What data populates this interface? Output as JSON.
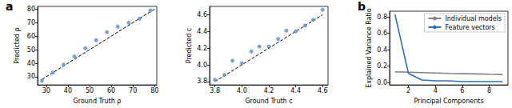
{
  "chart_data": [
    {
      "type": "scatter",
      "title": "a",
      "x_label": "Ground Truth ρ",
      "y_label": "Predicted ρ",
      "x": [
        28,
        33,
        38,
        43,
        48,
        53,
        58,
        63,
        68,
        73,
        78
      ],
      "values": [
        27,
        33,
        39,
        45,
        51,
        57,
        63,
        67,
        70,
        73,
        79
      ],
      "color": "#5b8fc9",
      "marker": "circle",
      "fit_line": {
        "x": [
          28,
          80
        ],
        "values": [
          28,
          80
        ],
        "color": "#000000",
        "line_style": "dashed"
      },
      "xlim": [
        26,
        81
      ],
      "ylim": [
        24,
        82
      ],
      "xticks": [
        30,
        40,
        50,
        60,
        70,
        80
      ],
      "yticks": [
        30,
        40,
        50,
        60,
        70,
        80
      ],
      "grid": false
    },
    {
      "type": "scatter",
      "x_label": "Ground Truth c",
      "y_label": "Predicted c",
      "x": [
        3.8,
        3.87,
        3.93,
        4.0,
        4.07,
        4.13,
        4.2,
        4.27,
        4.33,
        4.4,
        4.47,
        4.53,
        4.6
      ],
      "values": [
        3.82,
        3.88,
        4.05,
        4.02,
        4.16,
        4.22,
        4.22,
        4.31,
        4.41,
        4.4,
        4.47,
        4.54,
        4.66
      ],
      "color": "#5b8fc9",
      "marker": "circle",
      "fit_line": {
        "x": [
          3.8,
          4.6
        ],
        "values": [
          3.8,
          4.6
        ],
        "color": "#000000",
        "line_style": "dashed"
      },
      "xlim": [
        3.76,
        4.64
      ],
      "ylim": [
        3.76,
        4.7
      ],
      "xticks": [
        3.8,
        {
          "value": 4,
          "label": "4.0"
        },
        4.2,
        4.4,
        4.6
      ],
      "yticks": [
        3.8,
        {
          "value": 4,
          "label": "4.0"
        },
        4.2,
        4.4,
        4.6
      ],
      "grid": false
    },
    {
      "type": "line",
      "title": "b",
      "x_label": "Principal Components",
      "y_label": "Explained Variance Ratio",
      "x": [
        1,
        2,
        3,
        4,
        5,
        6,
        7,
        8,
        9
      ],
      "series": [
        {
          "name": "Individual models",
          "color": "#808080",
          "marker": "none",
          "values": [
            0.13,
            0.125,
            0.12,
            0.115,
            0.11,
            0.107,
            0.104,
            0.1,
            0.097
          ]
        },
        {
          "name": "Feature vectors",
          "color": "#2c6fb7",
          "marker": "none",
          "values": [
            0.83,
            0.11,
            0.03,
            0.02,
            0.02,
            0.01,
            0.01,
            0.01,
            0.01
          ]
        }
      ],
      "xlim": [
        0.6,
        9.4
      ],
      "ylim": [
        -0.03,
        0.87
      ],
      "xticks": [
        2,
        4,
        6,
        8
      ],
      "yticks": [
        {
          "value": 0,
          "label": "0.0"
        },
        0.2,
        0.4,
        0.6,
        0.8
      ],
      "legend": "upper right",
      "grid": false
    }
  ]
}
